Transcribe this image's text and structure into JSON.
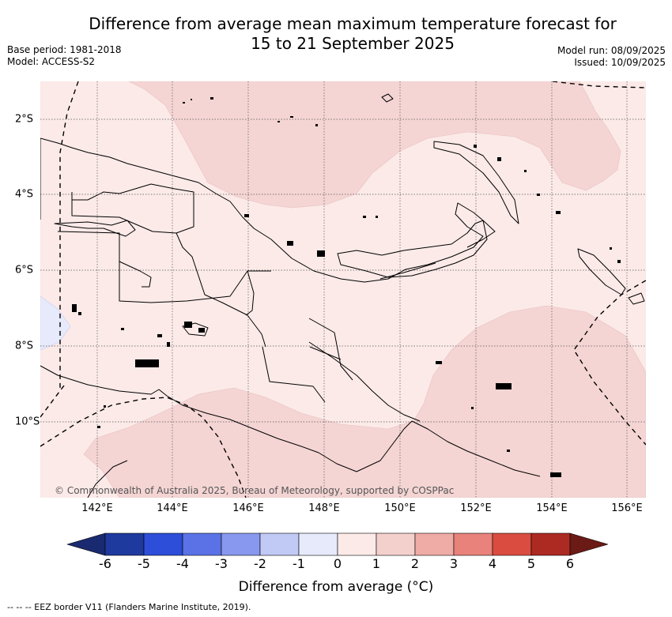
{
  "header": {
    "title_line1": "Difference from average mean maximum temperature forecast for",
    "title_line2": "15 to 21 September 2025",
    "base_period": "Base period: 1981-2018",
    "model": "Model: ACCESS-S2",
    "model_run": "Model run: 08/09/2025",
    "issued": "Issued: 10/09/2025"
  },
  "map": {
    "copyright": "© Commonwealth of Australia 2025, Bureau of Meteorology, supported by COSPPac",
    "lon_labels": [
      "142°E",
      "144°E",
      "146°E",
      "148°E",
      "150°E",
      "152°E",
      "154°E",
      "156°E"
    ],
    "lat_labels": [
      "2°S",
      "4°S",
      "6°S",
      "8°S",
      "10°S"
    ],
    "colors": {
      "anomaly_0_1": "#fbeae8",
      "anomaly_1_2": "#f4d5d4",
      "anomaly_neg1_0": "#e8ecfb",
      "land_outline": "#000000",
      "gridline": "#555555"
    }
  },
  "colorbar": {
    "title": "Difference from average (°C)",
    "ticks": [
      "-6",
      "-5",
      "-4",
      "-3",
      "-2",
      "-1",
      "0",
      "1",
      "2",
      "3",
      "4",
      "5",
      "6"
    ],
    "bin_colors": [
      "#1f3a9e",
      "#2c4ed8",
      "#5a72e6",
      "#8798ee",
      "#c1c9f5",
      "#e6eafb",
      "#fbeae8",
      "#f4d0cd",
      "#efaba5",
      "#e8827a",
      "#da4c40",
      "#ad2a22"
    ],
    "under_color": "#1a2a70",
    "over_color": "#6b1a16"
  },
  "footer": {
    "eez_note": "-- -- -- EEZ border V11 (Flanders Marine Institute, 2019)."
  }
}
